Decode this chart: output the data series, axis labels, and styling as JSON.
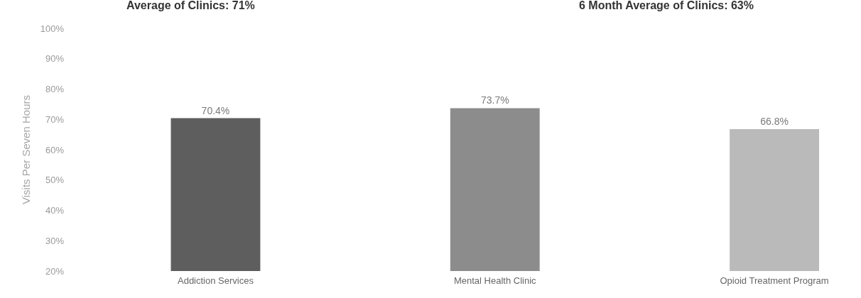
{
  "chart_data": {
    "type": "bar",
    "annotations": [
      "Average of Clinics: 71%",
      "6 Month Average of Clinics: 63%"
    ],
    "ylabel": "Visits Per Seven Hours",
    "categories": [
      "Addiction Services",
      "Mental Health Clinic",
      "Opioid Treatment Program"
    ],
    "values": [
      70.4,
      73.7,
      66.8
    ],
    "value_labels": [
      "70.4%",
      "73.7%",
      "66.8%"
    ],
    "colors": [
      "#5e5e5e",
      "#8c8c8c",
      "#bababa"
    ],
    "ylim": [
      20,
      100
    ],
    "yticks": [
      {
        "value": 20,
        "label": "20%"
      },
      {
        "value": 30,
        "label": "30%"
      },
      {
        "value": 40,
        "label": "40%"
      },
      {
        "value": 50,
        "label": "50%"
      },
      {
        "value": 60,
        "label": "60%"
      },
      {
        "value": 70,
        "label": "70%"
      },
      {
        "value": 80,
        "label": "80%"
      },
      {
        "value": 90,
        "label": "90%"
      },
      {
        "value": 100,
        "label": "100%"
      }
    ]
  }
}
